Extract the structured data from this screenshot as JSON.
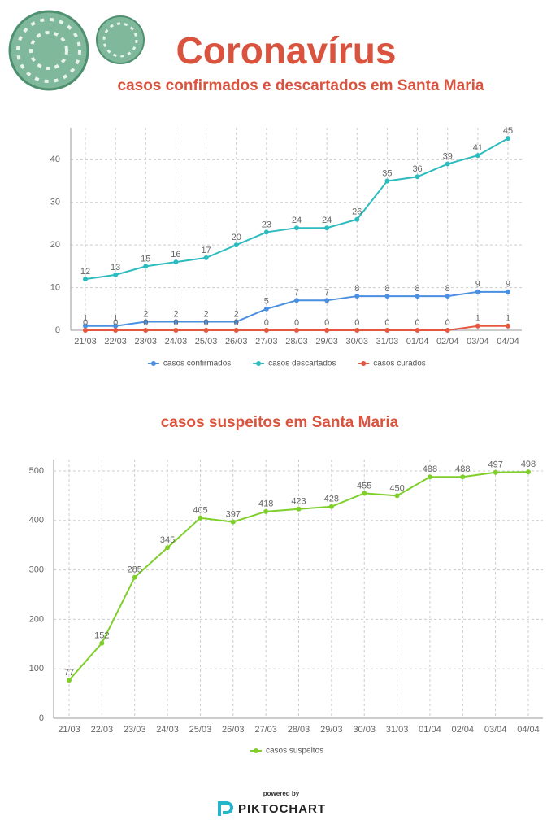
{
  "chart_data": [
    {
      "type": "line",
      "title": "Coronavírus",
      "subtitle": "casos confirmados e descartados em Santa Maria",
      "categories": [
        "21/03",
        "22/03",
        "23/03",
        "24/03",
        "25/03",
        "26/03",
        "27/03",
        "28/03",
        "29/03",
        "30/03",
        "31/03",
        "01/04",
        "02/04",
        "03/04",
        "04/04"
      ],
      "series": [
        {
          "name": "casos confirmados",
          "color": "#4a8fe0",
          "values": [
            1,
            1,
            2,
            2,
            2,
            2,
            5,
            7,
            7,
            8,
            8,
            8,
            8,
            9,
            9
          ]
        },
        {
          "name": "casos descartados",
          "color": "#2cbcbf",
          "values": [
            12,
            13,
            15,
            16,
            17,
            20,
            23,
            24,
            24,
            26,
            35,
            36,
            39,
            41,
            45
          ]
        },
        {
          "name": "casos curados",
          "color": "#e5583f",
          "values": [
            0,
            0,
            0,
            0,
            0,
            0,
            0,
            0,
            0,
            0,
            0,
            0,
            0,
            1,
            1
          ]
        }
      ],
      "ylim": [
        0,
        47.5
      ],
      "yticks": [
        0,
        10,
        20,
        30,
        40
      ],
      "grid": true,
      "legend": "bottom"
    },
    {
      "type": "line",
      "title": "casos suspeitos  em Santa Maria",
      "categories": [
        "21/03",
        "22/03",
        "23/03",
        "24/03",
        "25/03",
        "26/03",
        "27/03",
        "28/03",
        "29/03",
        "30/03",
        "31/03",
        "01/04",
        "02/04",
        "03/04",
        "04/04"
      ],
      "series": [
        {
          "name": "casos suspeitos",
          "color": "#7fcf2a",
          "values": [
            77,
            152,
            285,
            345,
            405,
            397,
            418,
            423,
            428,
            455,
            450,
            488,
            488,
            497,
            498
          ]
        }
      ],
      "ylim": [
        0,
        523
      ],
      "yticks": [
        0,
        100,
        200,
        300,
        400,
        500
      ],
      "grid": true,
      "legend": "bottom"
    }
  ],
  "footer": {
    "powered_by": "powered by",
    "brand": "PIKTOCHART"
  }
}
